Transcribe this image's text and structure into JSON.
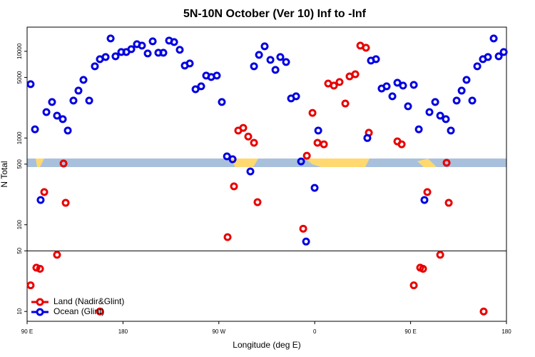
{
  "chart_data": {
    "type": "scatter",
    "title": "5N-10N October (Ver 10)   Inf to -Inf",
    "x_label": "Longitude (deg E)",
    "y_label": "N Total",
    "log_y": true,
    "xlim": [
      90,
      540
    ],
    "ylim": [
      7.7,
      19000
    ],
    "xticks": [
      {
        "value": 90,
        "label": "90 E"
      },
      180,
      {
        "value": 270,
        "label": "90 W"
      },
      {
        "value": 360,
        "label": "0"
      },
      {
        "value": 450,
        "label": "90 E"
      },
      {
        "value": 540,
        "label": "180"
      }
    ],
    "yticks": [
      10,
      50,
      100,
      500,
      1000,
      5000,
      10000
    ],
    "hlines": [
      50
    ],
    "legend": "bottom-left",
    "series": [
      {
        "name": "Land (Nadir&Glint)",
        "color": "#e80000",
        "x": [
          93.3,
          98.7,
          102.1,
          106.1,
          118.1,
          124.2,
          126.2,
          158.3,
          278.2,
          284.2,
          288.2,
          292.9,
          297.6,
          303.0,
          306.3,
          349.2,
          352.6,
          357.9,
          362.6,
          368.6,
          372.6,
          378.0,
          383.3,
          388.7,
          392.7,
          398.1,
          402.8,
          408.1,
          410.8,
          437.6,
          441.6,
          453.0,
          459.0,
          461.7,
          465.7,
          477.8,
          483.8,
          485.8,
          518.6
        ],
        "values": [
          20,
          32,
          31,
          238,
          45,
          508,
          179,
          10,
          72,
          277,
          1220,
          1310,
          1040,
          881,
          182,
          90,
          625,
          1950,
          881,
          847,
          4250,
          4020,
          4420,
          2500,
          5140,
          5440,
          11640,
          11000,
          1150,
          914,
          847,
          20,
          32,
          31,
          238,
          45,
          518,
          179,
          10
        ]
      },
      {
        "name": "Ocean (Glint)",
        "color": "#0000e0",
        "x": [
          93.3,
          97.4,
          102.7,
          108.1,
          113.4,
          118.1,
          123.5,
          128.2,
          133.5,
          138.2,
          142.9,
          148.3,
          153.6,
          158.3,
          163.7,
          168.4,
          173.0,
          178.4,
          183.1,
          187.8,
          193.1,
          197.8,
          203.2,
          207.9,
          213.2,
          217.9,
          223.3,
          228.0,
          233.3,
          238.0,
          242.7,
          248.1,
          253.4,
          258.1,
          262.8,
          268.1,
          272.8,
          277.6,
          282.9,
          299.6,
          303.0,
          307.7,
          313.0,
          318.4,
          323.1,
          327.7,
          333.1,
          337.8,
          342.5,
          347.2,
          351.9,
          359.9,
          363.3,
          409.4,
          412.8,
          417.5,
          422.8,
          427.5,
          432.9,
          437.6,
          442.9,
          447.6,
          453.0,
          457.7,
          463.0,
          467.7,
          473.1,
          477.8,
          483.1,
          487.8,
          493.2,
          497.9,
          502.5,
          507.9,
          512.6,
          517.9,
          522.6,
          528.0,
          532.7,
          537.4
        ],
        "values": [
          4180,
          1260,
          193,
          1990,
          2600,
          1810,
          1650,
          1220,
          2700,
          3520,
          4680,
          2700,
          6720,
          8110,
          8590,
          14070,
          8750,
          9810,
          9810,
          10580,
          12090,
          11640,
          9440,
          13040,
          9630,
          9630,
          13300,
          12800,
          10400,
          6840,
          7240,
          3650,
          3950,
          5250,
          5050,
          5250,
          2600,
          614,
          569,
          412,
          6720,
          9100,
          11420,
          7960,
          6110,
          8590,
          7520,
          2860,
          3030,
          537,
          64,
          266,
          1220,
          1000,
          7820,
          8110,
          3720,
          3950,
          3030,
          4340,
          4020,
          2320,
          4100,
          1260,
          193,
          1990,
          2600,
          1810,
          1650,
          1220,
          2700,
          3520,
          4680,
          2700,
          6720,
          8110,
          8590,
          14070,
          8750,
          9810
        ]
      }
    ]
  }
}
